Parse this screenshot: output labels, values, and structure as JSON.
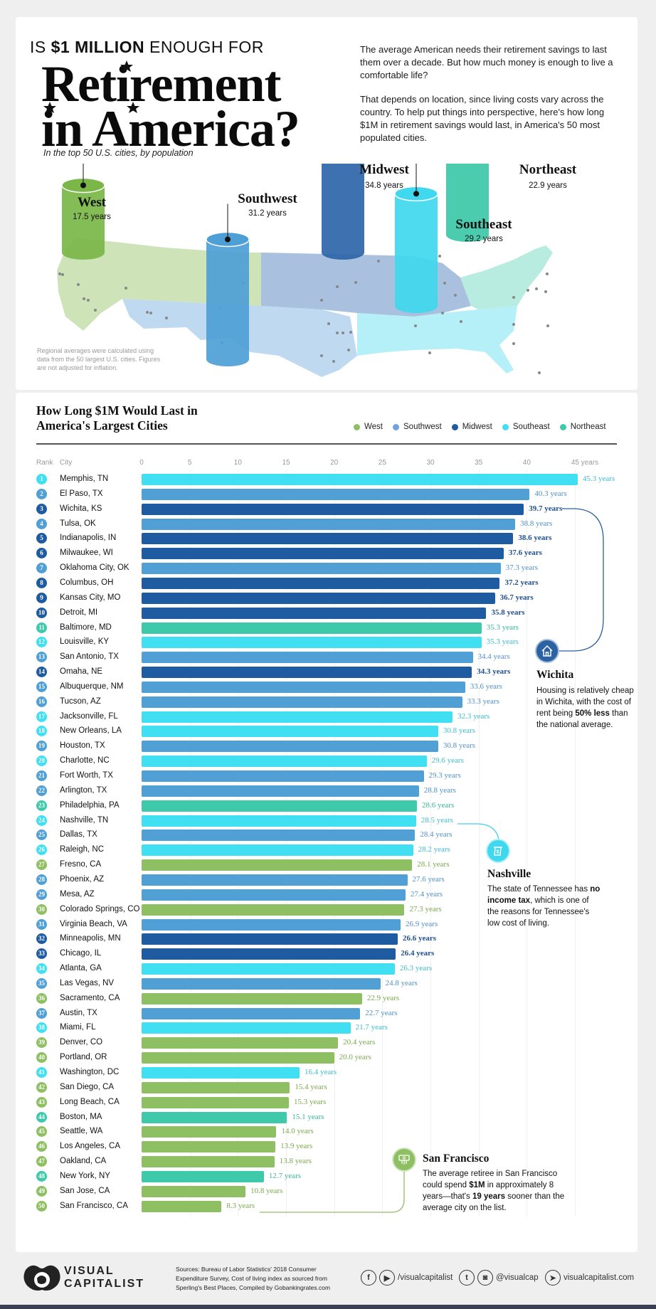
{
  "header": {
    "kicker_pre": "IS ",
    "kicker_bold": "$1 MILLION",
    "kicker_post": " ENOUGH FOR",
    "title_line1": "Retirement",
    "title_line2": "in America?",
    "subtitle": "In the top 50 U.S. cities, by population",
    "intro_p1": "The average American needs their retirement savings to last them over a decade. But how much money is enough to live a comfortable life?",
    "intro_p2": "That depends on location, since living costs vary across the country. To help put things into perspective, here's how long $1M in retirement savings would last, in America's 50 most populated cities."
  },
  "map": {
    "regions": [
      {
        "name": "West",
        "value_label": "17.5 years",
        "value": 17.5,
        "color": "#7ab648"
      },
      {
        "name": "Southwest",
        "value_label": "31.2 years",
        "value": 31.2,
        "color": "#4e9fd6"
      },
      {
        "name": "Midwest",
        "value_label": "34.8 years",
        "value": 34.8,
        "color": "#2e65a8"
      },
      {
        "name": "Southeast",
        "value_label": "29.2 years",
        "value": 29.2,
        "color": "#40d8ee"
      },
      {
        "name": "Northeast",
        "value_label": "22.9 years",
        "value": 22.9,
        "color": "#3cc8a8"
      }
    ],
    "note": "Regional averages were calculated using data from the 50 largest U.S. cities. Figures are not adjusted for inflation."
  },
  "chart_data": {
    "type": "bar",
    "orientation": "horizontal",
    "title": "How Long $1M Would Last in America's Largest Cities",
    "xlabel": "years",
    "column_headers": {
      "rank": "Rank",
      "city": "City"
    },
    "xlim": [
      0,
      45
    ],
    "x_ticks": [
      "0",
      "5",
      "10",
      "15",
      "20",
      "25",
      "30",
      "35",
      "40",
      "45 years"
    ],
    "x_tick_values": [
      0,
      5,
      10,
      15,
      20,
      25,
      30,
      35,
      40,
      45
    ],
    "grid": true,
    "legend_position": "top-right",
    "legend": [
      {
        "name": "West",
        "color": "#8fbf63"
      },
      {
        "name": "Southwest",
        "color": "#6ca3e0"
      },
      {
        "name": "Midwest",
        "color": "#1f5ba0"
      },
      {
        "name": "Southeast",
        "color": "#40e0f2"
      },
      {
        "name": "Northeast",
        "color": "#3ec9ab"
      }
    ],
    "region_colors": {
      "West": {
        "bar": "#8fbf63",
        "text": "#7aa84c"
      },
      "Southwest": {
        "bar": "#509fd5",
        "text": "#4f8fc8"
      },
      "Midwest": {
        "bar": "#1f5ba0",
        "text": "#1f4f92"
      },
      "Southeast": {
        "bar": "#40e0f2",
        "text": "#3cbcd0"
      },
      "Northeast": {
        "bar": "#3ec9ab",
        "text": "#36b696"
      }
    },
    "rows": [
      {
        "rank": "1",
        "city": "Memphis, TN",
        "value": 45.3,
        "label": "45.3 years",
        "region": "Southeast"
      },
      {
        "rank": "2",
        "city": "El Paso, TX",
        "value": 40.3,
        "label": "40.3 years",
        "region": "Southwest"
      },
      {
        "rank": "3",
        "city": "Wichita, KS",
        "value": 39.7,
        "label": "39.7 years",
        "region": "Midwest"
      },
      {
        "rank": "4",
        "city": "Tulsa, OK",
        "value": 38.8,
        "label": "38.8 years",
        "region": "Southwest"
      },
      {
        "rank": "5",
        "city": "Indianapolis, IN",
        "value": 38.6,
        "label": "38.6 years",
        "region": "Midwest"
      },
      {
        "rank": "6",
        "city": "Milwaukee, WI",
        "value": 37.6,
        "label": "37.6 years",
        "region": "Midwest"
      },
      {
        "rank": "7",
        "city": "Oklahoma City, OK",
        "value": 37.3,
        "label": "37.3 years",
        "region": "Southwest"
      },
      {
        "rank": "8",
        "city": "Columbus, OH",
        "value": 37.2,
        "label": "37.2 years",
        "region": "Midwest"
      },
      {
        "rank": "9",
        "city": "Kansas City, MO",
        "value": 36.7,
        "label": "36.7 years",
        "region": "Midwest"
      },
      {
        "rank": "10",
        "city": "Detroit, MI",
        "value": 35.8,
        "label": "35.8 years",
        "region": "Midwest"
      },
      {
        "rank": "11",
        "city": "Baltimore, MD",
        "value": 35.3,
        "label": "35.3 years",
        "region": "Northeast"
      },
      {
        "rank": "12",
        "city": "Louisville, KY",
        "value": 35.3,
        "label": "35.3 years",
        "region": "Southeast"
      },
      {
        "rank": "13",
        "city": "San Antonio, TX",
        "value": 34.4,
        "label": "34.4 years",
        "region": "Southwest"
      },
      {
        "rank": "14",
        "city": "Omaha, NE",
        "value": 34.3,
        "label": "34.3 years",
        "region": "Midwest"
      },
      {
        "rank": "15",
        "city": "Albuquerque, NM",
        "value": 33.6,
        "label": "33.6 years",
        "region": "Southwest"
      },
      {
        "rank": "16",
        "city": "Tucson, AZ",
        "value": 33.3,
        "label": "33.3 years",
        "region": "Southwest"
      },
      {
        "rank": "17",
        "city": "Jacksonville, FL",
        "value": 32.3,
        "label": "32.3 years",
        "region": "Southeast"
      },
      {
        "rank": "18",
        "city": "New Orleans, LA",
        "value": 30.8,
        "label": "30.8 years",
        "region": "Southeast"
      },
      {
        "rank": "19",
        "city": "Houston, TX",
        "value": 30.8,
        "label": "30.8 years",
        "region": "Southwest"
      },
      {
        "rank": "20",
        "city": "Charlotte, NC",
        "value": 29.6,
        "label": "29.6 years",
        "region": "Southeast"
      },
      {
        "rank": "21",
        "city": "Fort Worth, TX",
        "value": 29.3,
        "label": "29.3 years",
        "region": "Southwest"
      },
      {
        "rank": "22",
        "city": "Arlington, TX",
        "value": 28.8,
        "label": "28.8 years",
        "region": "Southwest"
      },
      {
        "rank": "23",
        "city": "Philadelphia, PA",
        "value": 28.6,
        "label": "28.6 years",
        "region": "Northeast"
      },
      {
        "rank": "24",
        "city": "Nashville, TN",
        "value": 28.5,
        "label": "28.5 years",
        "region": "Southeast"
      },
      {
        "rank": "25",
        "city": "Dallas, TX",
        "value": 28.4,
        "label": "28.4 years",
        "region": "Southwest"
      },
      {
        "rank": "26",
        "city": "Raleigh, NC",
        "value": 28.2,
        "label": "28.2 years",
        "region": "Southeast"
      },
      {
        "rank": "27",
        "city": "Fresno, CA",
        "value": 28.1,
        "label": "28.1 years",
        "region": "West"
      },
      {
        "rank": "28",
        "city": "Phoenix, AZ",
        "value": 27.6,
        "label": "27.6 years",
        "region": "Southwest"
      },
      {
        "rank": "29",
        "city": "Mesa, AZ",
        "value": 27.4,
        "label": "27.4 years",
        "region": "Southwest"
      },
      {
        "rank": "30",
        "city": "Colorado Springs, CO",
        "value": 27.3,
        "label": "27.3 years",
        "region": "West"
      },
      {
        "rank": "31",
        "city": "Virginia Beach, VA",
        "value": 26.9,
        "label": "26.9 years",
        "region": "Southwest"
      },
      {
        "rank": "32",
        "city": "Minneapolis, MN",
        "value": 26.6,
        "label": "26.6 years",
        "region": "Midwest"
      },
      {
        "rank": "33",
        "city": "Chicago, IL",
        "value": 26.4,
        "label": "26.4 years",
        "region": "Midwest"
      },
      {
        "rank": "34",
        "city": "Atlanta, GA",
        "value": 26.3,
        "label": "26.3 years",
        "region": "Southeast"
      },
      {
        "rank": "35",
        "city": "Las Vegas, NV",
        "value": 24.8,
        "label": "24.8 years",
        "region": "Southwest"
      },
      {
        "rank": "36",
        "city": "Sacramento, CA",
        "value": 22.9,
        "label": "22.9 years",
        "region": "West"
      },
      {
        "rank": "37",
        "city": "Austin, TX",
        "value": 22.7,
        "label": "22.7 years",
        "region": "Southwest"
      },
      {
        "rank": "38",
        "city": "Miami, FL",
        "value": 21.7,
        "label": "21.7 years",
        "region": "Southeast"
      },
      {
        "rank": "39",
        "city": "Denver, CO",
        "value": 20.4,
        "label": "20.4 years",
        "region": "West"
      },
      {
        "rank": "40",
        "city": "Portland, OR",
        "value": 20.0,
        "label": "20.0 years",
        "region": "West"
      },
      {
        "rank": "41",
        "city": "Washington, DC",
        "value": 16.4,
        "label": "16.4 years",
        "region": "Southeast"
      },
      {
        "rank": "42",
        "city": "San Diego, CA",
        "value": 15.4,
        "label": "15.4 years",
        "region": "West"
      },
      {
        "rank": "43",
        "city": "Long Beach, CA",
        "value": 15.3,
        "label": "15.3 years",
        "region": "West"
      },
      {
        "rank": "44",
        "city": "Boston, MA",
        "value": 15.1,
        "label": "15.1 years",
        "region": "Northeast"
      },
      {
        "rank": "45",
        "city": "Seattle, WA",
        "value": 14.0,
        "label": "14.0 years",
        "region": "West"
      },
      {
        "rank": "46",
        "city": "Los Angeles, CA",
        "value": 13.9,
        "label": "13.9 years",
        "region": "West"
      },
      {
        "rank": "47",
        "city": "Oakland, CA",
        "value": 13.8,
        "label": "13.8 years",
        "region": "West"
      },
      {
        "rank": "48",
        "city": "New York, NY",
        "value": 12.7,
        "label": "12.7 years",
        "region": "Northeast"
      },
      {
        "rank": "49",
        "city": "San Jose, CA",
        "value": 10.8,
        "label": "10.8 years",
        "region": "West"
      },
      {
        "rank": "50",
        "city": "San Francisco, CA",
        "value": 8.3,
        "label": "8.3 years",
        "region": "West"
      }
    ]
  },
  "callouts": {
    "wichita": {
      "title": "Wichita",
      "text_1": "Housing is relatively cheap in Wichita, with the cost of rent being ",
      "bold": "50% less",
      "text_2": " than the national average.",
      "icon": "house-icon"
    },
    "nashville": {
      "title": "Nashville",
      "text_1": "The state of Tennessee has ",
      "bold": "no income tax",
      "text_2": ", which is one of the reasons for Tennessee's low cost of living.",
      "icon": "money-receipt-icon"
    },
    "san_francisco": {
      "title": "San Francisco",
      "text_1": "The average retiree in San Francisco could spend ",
      "bold_1": "$1M",
      "text_2": " in approximately 8 years—that's ",
      "bold_2": "19 years",
      "text_3": " sooner than the average city on the list.",
      "icon": "cash-hand-icon"
    }
  },
  "footer": {
    "logo_line1": "VISUAL",
    "logo_line2": "CAPITALIST",
    "sources": "Sources: Bureau of Labor Statistics' 2018 Consumer Expenditure Survey, Cost of living index as sourced from Sperling's Best Places, Compiled by Gobankingrates.com",
    "facebook_youtube_handle": "/visualcapitalist",
    "twitter_instagram_handle": "@visualcap",
    "website": "visualcapitalist.com"
  }
}
